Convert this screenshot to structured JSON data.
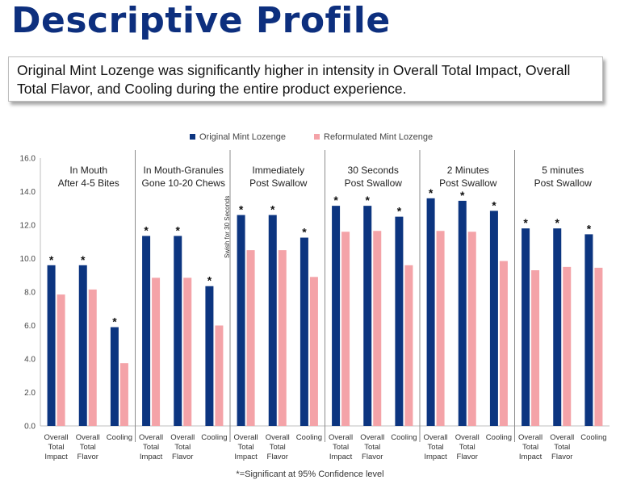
{
  "header": {
    "title": "Descriptive Profile",
    "summary": "Original Mint Lozenge was significantly higher in intensity in Overall Total Impact, Overall Total Flavor, and Cooling during the entire product experience."
  },
  "colors": {
    "original": "#0c3580",
    "reformulated": "#f4a3a8",
    "title": "#0d2f7e",
    "divider": "#8c8c8c",
    "axis": "#bfbfbf"
  },
  "chart_data": {
    "type": "bar",
    "ylim": [
      0,
      16
    ],
    "yticks": [
      "0.0",
      "2.0",
      "4.0",
      "6.0",
      "8.0",
      "10.0",
      "12.0",
      "14.0",
      "16.0"
    ],
    "series": [
      {
        "name": "Original Mint Lozenge"
      },
      {
        "name": "Reformulated Mint Lozenge"
      }
    ],
    "category_labels": [
      [
        "Overall",
        "Total",
        "Impact"
      ],
      [
        "Overall",
        "Total",
        "Flavor"
      ],
      [
        "Cooling"
      ]
    ],
    "rotated_note": "Swish for 30 Seconds",
    "significance_marker": "*",
    "footnote": "*=Significant at 95% Confidence level",
    "groups": [
      {
        "label": [
          "In Mouth",
          "After 4-5 Bites"
        ],
        "original": [
          9.6,
          9.6,
          5.9
        ],
        "reformulated": [
          7.85,
          8.15,
          3.75
        ],
        "significant": [
          true,
          true,
          true
        ]
      },
      {
        "label": [
          "In Mouth-Granules",
          "Gone 10-20 Chews"
        ],
        "original": [
          11.35,
          11.35,
          8.35
        ],
        "reformulated": [
          8.85,
          8.85,
          6.0
        ],
        "significant": [
          true,
          true,
          true
        ]
      },
      {
        "label": [
          "Immediately",
          "Post Swallow"
        ],
        "original": [
          12.6,
          12.6,
          11.25
        ],
        "reformulated": [
          10.5,
          10.5,
          8.9
        ],
        "significant": [
          true,
          true,
          true
        ]
      },
      {
        "label": [
          "30 Seconds",
          "Post Swallow"
        ],
        "original": [
          13.15,
          13.15,
          12.5
        ],
        "reformulated": [
          11.6,
          11.65,
          9.6
        ],
        "significant": [
          true,
          true,
          true
        ]
      },
      {
        "label": [
          "2 Minutes",
          "Post Swallow"
        ],
        "original": [
          13.6,
          13.45,
          12.85
        ],
        "reformulated": [
          11.65,
          11.6,
          9.85
        ],
        "significant": [
          true,
          true,
          true
        ]
      },
      {
        "label": [
          "5 minutes",
          "Post Swallow"
        ],
        "original": [
          11.8,
          11.8,
          11.45
        ],
        "reformulated": [
          9.3,
          9.5,
          9.45
        ],
        "significant": [
          true,
          true,
          true
        ]
      }
    ]
  }
}
